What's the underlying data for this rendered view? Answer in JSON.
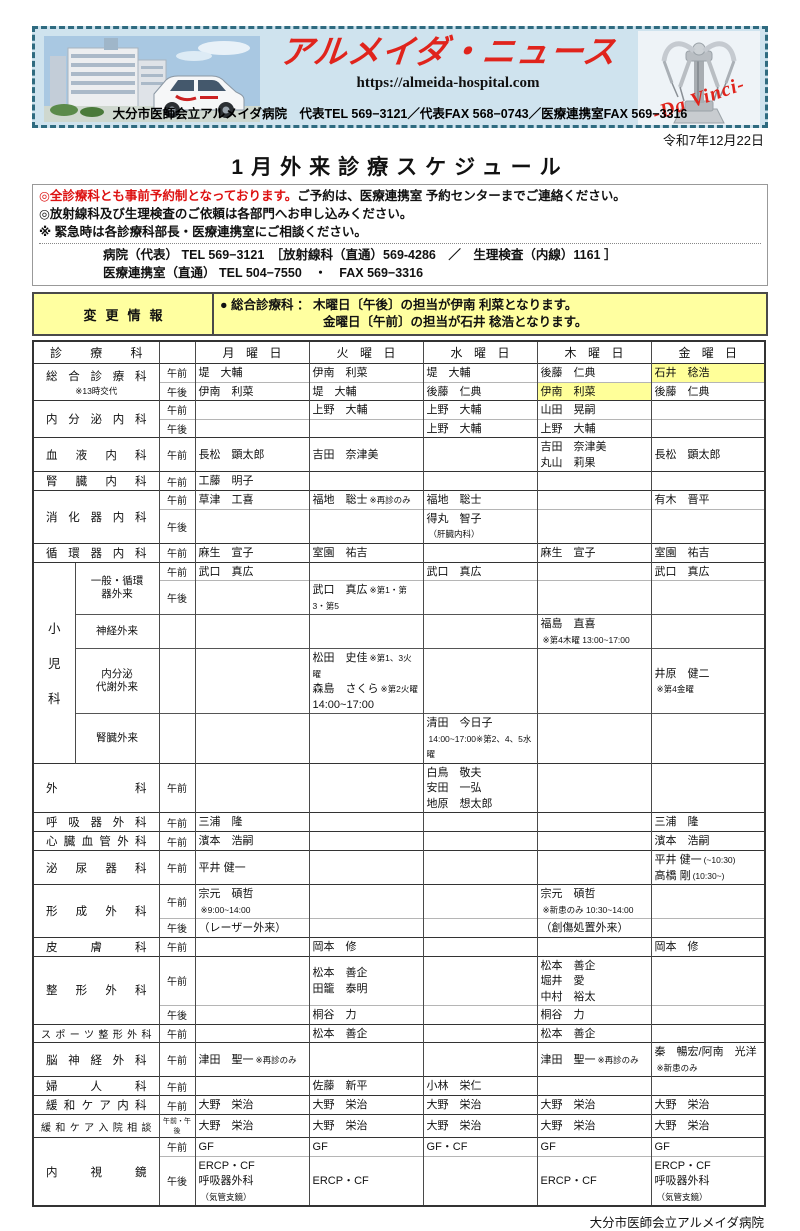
{
  "masthead": {
    "title": "アルメイダ・ニュース",
    "url": "https://almeida-hospital.com",
    "contact": "大分市医師会立アルメイダ病院　代表TEL 569−3121／代表FAX 568−0743／医療連携室FAX 569−3316",
    "da_vinci": "-Da Vinci-"
  },
  "issue_date": "令和7年12月22日",
  "page_title": "1月外来診療スケジュール",
  "notice": {
    "line1_red": "◎全診療科とも事前予約制となっております。",
    "line1_black": "ご予約は、医療連携室 予約センターまでご連絡ください。",
    "line2": "◎放射線科及び生理検査のご依頼は各部門へお申し込みください。",
    "line3": "※ 緊急時は各診療科部長・医療連携室にご相談ください。",
    "phone1": "病院（代表） TEL 569−3121　［放射線科（直通）569-4286　／　生理検査（内線）1161 ］",
    "phone2": "医療連携室（直通） TEL 504−7550　・　FAX 569−3316"
  },
  "change_info": {
    "label": "変更情報",
    "prefix": "● 総合診療科 ：",
    "line1": "木曜日〔午後〕の担当が伊南 利菜となります。",
    "line2": "金曜日〔午前〕の担当が石井 稔浩となります。"
  },
  "colors": {
    "accent_red": "#dd1111",
    "highlight_yellow": "#ffff99",
    "masthead_blue": "#cfe3ee",
    "masthead_border_teal": "#2f6b80",
    "change_box_yellow": "#ffffa0"
  },
  "schedule": {
    "header": {
      "dept": "診療科",
      "days": [
        "月曜日",
        "火曜日",
        "水曜日",
        "木曜日",
        "金曜日"
      ]
    },
    "rows": [
      {
        "dept": "総合診療科",
        "dept_note": "※13時交代",
        "sessions": [
          {
            "label": "午前",
            "cells": [
              {
                "t": "堤　大輔"
              },
              {
                "t": "伊南　利菜"
              },
              {
                "t": "堤　大輔"
              },
              {
                "t": "後藤　仁典"
              },
              {
                "t": "石井　稔浩",
                "hl": true
              }
            ]
          },
          {
            "label": "午後",
            "cells": [
              {
                "t": "伊南　利菜"
              },
              {
                "t": "堤　大輔"
              },
              {
                "t": "後藤　仁典"
              },
              {
                "t": "伊南　利菜",
                "hl": true
              },
              {
                "t": "後藤　仁典"
              }
            ]
          }
        ]
      },
      {
        "dept": "内分泌内科",
        "sessions": [
          {
            "label": "午前",
            "cells": [
              null,
              {
                "t": "上野　大輔"
              },
              {
                "t": "上野　大輔"
              },
              {
                "t": "山田　晃嗣"
              },
              null
            ]
          },
          {
            "label": "午後",
            "cells": [
              null,
              null,
              {
                "t": "上野　大輔"
              },
              {
                "t": "上野　大輔"
              },
              null
            ]
          }
        ]
      },
      {
        "dept": "血液内科",
        "sessions": [
          {
            "label": "午前",
            "cells": [
              {
                "t": "長松　顕太郎"
              },
              {
                "t": "吉田　奈津美"
              },
              null,
              {
                "lines": [
                  {
                    "t": "吉田　奈津美"
                  },
                  {
                    "t": "丸山　莉果"
                  }
                ]
              },
              {
                "t": "長松　顕太郎"
              }
            ]
          }
        ]
      },
      {
        "dept": "腎臓内科",
        "sessions": [
          {
            "label": "午前",
            "cells": [
              {
                "t": "工藤　明子"
              },
              null,
              null,
              null,
              null
            ]
          }
        ]
      },
      {
        "dept": "消化器内科",
        "sessions": [
          {
            "label": "午前",
            "cells": [
              {
                "t": "草津　工喜"
              },
              {
                "t": "福地　聡士",
                "n": "※再診のみ"
              },
              {
                "t": "福地　聡士"
              },
              null,
              {
                "t": "有木　晋平"
              }
            ]
          },
          {
            "label": "午後",
            "cells": [
              null,
              null,
              {
                "t": "得丸　智子",
                "n": "（肝臓内科）"
              },
              null,
              null
            ]
          }
        ]
      },
      {
        "dept": "循環器内科",
        "sessions": [
          {
            "label": "午前",
            "cells": [
              {
                "t": "麻生　宣子"
              },
              {
                "t": "室園　祐吉"
              },
              null,
              {
                "t": "麻生　宣子"
              },
              {
                "t": "室園　祐吉"
              }
            ]
          }
        ]
      },
      {
        "group": "小児科",
        "subrows": [
          {
            "sublabel": "一般・循環\n器外来",
            "sessions": [
              {
                "label": "午前",
                "cells": [
                  {
                    "t": "武口　真広"
                  },
                  null,
                  {
                    "t": "武口　真広"
                  },
                  null,
                  {
                    "t": "武口　真広"
                  }
                ]
              },
              {
                "label": "午後",
                "cells": [
                  null,
                  {
                    "t": "武口　真広",
                    "n": "※第1・第3・第5"
                  },
                  null,
                  null,
                  null
                ]
              }
            ]
          },
          {
            "sublabel": "神経外来",
            "sessions": [
              {
                "label": "",
                "cells": [
                  null,
                  null,
                  null,
                  {
                    "lines": [
                      {
                        "t": "福島　直喜"
                      },
                      {
                        "n": "※第4木曜 13:00~17:00"
                      }
                    ]
                  },
                  null
                ]
              }
            ]
          },
          {
            "sublabel": "内分泌\n代謝外来",
            "sessions": [
              {
                "label": "",
                "cells": [
                  null,
                  {
                    "lines": [
                      {
                        "t": "松田　史佳",
                        "n": "※第1、3火曜"
                      },
                      {
                        "t": "森島　さくら",
                        "n": "※第2火曜"
                      },
                      {
                        "t": "14:00~17:00"
                      }
                    ]
                  },
                  null,
                  null,
                  {
                    "lines": [
                      {
                        "t": "井原　健二"
                      },
                      {
                        "n": "※第4金曜"
                      }
                    ]
                  }
                ]
              }
            ]
          },
          {
            "sublabel": "腎臓外来",
            "sessions": [
              {
                "label": "",
                "cells": [
                  null,
                  null,
                  {
                    "lines": [
                      {
                        "t": "清田　今日子"
                      },
                      {
                        "n": "14:00~17:00※第2、4、5水曜"
                      }
                    ]
                  },
                  null,
                  null
                ]
              }
            ]
          }
        ]
      },
      {
        "dept": "外科",
        "sessions": [
          {
            "label": "午前",
            "cells": [
              null,
              null,
              {
                "lines": [
                  {
                    "t": "白鳥　敬夫"
                  },
                  {
                    "t": "安田　一弘"
                  },
                  {
                    "t": "地原　想太郎"
                  }
                ]
              },
              null,
              null
            ]
          }
        ]
      },
      {
        "dept": "呼吸器外科",
        "sessions": [
          {
            "label": "午前",
            "cells": [
              {
                "t": "三浦　隆"
              },
              null,
              null,
              null,
              {
                "t": "三浦　隆"
              }
            ]
          }
        ]
      },
      {
        "dept": "心臓血管外科",
        "sessions": [
          {
            "label": "午前",
            "cells": [
              {
                "t": "濱本　浩嗣"
              },
              null,
              null,
              null,
              {
                "t": "濱本　浩嗣"
              }
            ]
          }
        ]
      },
      {
        "dept": "泌尿器科",
        "sessions": [
          {
            "label": "午前",
            "cells": [
              {
                "t": "平井 健一"
              },
              null,
              null,
              null,
              {
                "lines": [
                  {
                    "t": "平井 健一",
                    "n": "(~10:30)"
                  },
                  {
                    "t": "高橋 剛",
                    "n": "(10:30~)"
                  }
                ]
              }
            ]
          }
        ]
      },
      {
        "dept": "形成外科",
        "sessions": [
          {
            "label": "午前",
            "cells": [
              {
                "lines": [
                  {
                    "t": "宗元　碩哲"
                  },
                  {
                    "n": "※9:00~14:00"
                  }
                ]
              },
              null,
              null,
              {
                "lines": [
                  {
                    "t": "宗元　碩哲"
                  },
                  {
                    "n": "※新患のみ 10:30~14:00"
                  }
                ]
              },
              null
            ]
          },
          {
            "label": "午後",
            "cells": [
              {
                "t": "（レーザー外来）"
              },
              null,
              null,
              {
                "t": "（創傷処置外来）"
              },
              null
            ]
          }
        ]
      },
      {
        "dept": "皮膚科",
        "sessions": [
          {
            "label": "午前",
            "cells": [
              null,
              {
                "t": "岡本　修"
              },
              null,
              null,
              {
                "t": "岡本　修"
              }
            ]
          }
        ]
      },
      {
        "dept": "整形外科",
        "sessions": [
          {
            "label": "午前",
            "cells": [
              null,
              {
                "lines": [
                  {
                    "t": "松本　善企"
                  },
                  {
                    "t": "田籠　泰明"
                  }
                ]
              },
              null,
              {
                "lines": [
                  {
                    "t": "松本　善企"
                  },
                  {
                    "t": "堀井　愛"
                  },
                  {
                    "t": "中村　裕太"
                  }
                ]
              },
              null
            ]
          },
          {
            "label": "午後",
            "cells": [
              null,
              {
                "t": "桐谷　力"
              },
              null,
              {
                "t": "桐谷　力"
              },
              null
            ]
          }
        ]
      },
      {
        "dept": "スポーツ整形外科",
        "sessions": [
          {
            "label": "午前",
            "cells": [
              null,
              {
                "t": "松本　善企"
              },
              null,
              {
                "t": "松本　善企"
              },
              null
            ]
          }
        ]
      },
      {
        "dept": "脳神経外科",
        "sessions": [
          {
            "label": "午前",
            "cells": [
              {
                "t": "津田　聖一",
                "n": "※再診のみ"
              },
              null,
              null,
              {
                "t": "津田　聖一",
                "n": "※再診のみ"
              },
              {
                "lines": [
                  {
                    "t": "秦　暢宏/阿南　光洋"
                  },
                  {
                    "n": "※新患のみ"
                  }
                ]
              }
            ]
          }
        ]
      },
      {
        "dept": "婦人科",
        "sessions": [
          {
            "label": "午前",
            "cells": [
              null,
              {
                "t": "佐藤　新平"
              },
              {
                "t": "小林　栄仁"
              },
              null,
              null
            ]
          }
        ]
      },
      {
        "dept": "緩和ケア内科",
        "sessions": [
          {
            "label": "午前",
            "cells": [
              {
                "t": "大野　栄治"
              },
              {
                "t": "大野　栄治"
              },
              {
                "t": "大野　栄治"
              },
              {
                "t": "大野　栄治"
              },
              {
                "t": "大野　栄治"
              }
            ]
          }
        ]
      },
      {
        "dept": "緩和ケア入院相談",
        "sessions": [
          {
            "label": "午前・午後",
            "cells": [
              {
                "t": "大野　栄治"
              },
              {
                "t": "大野　栄治"
              },
              {
                "t": "大野　栄治"
              },
              {
                "t": "大野　栄治"
              },
              {
                "t": "大野　栄治"
              }
            ]
          }
        ]
      },
      {
        "dept": "内視鏡",
        "sessions": [
          {
            "label": "午前",
            "cells": [
              {
                "t": "GF"
              },
              {
                "t": "GF"
              },
              {
                "t": "GF・CF"
              },
              {
                "t": "GF"
              },
              {
                "t": "GF"
              }
            ]
          },
          {
            "label": "午後",
            "cells": [
              {
                "lines": [
                  {
                    "t": "ERCP・CF"
                  },
                  {
                    "t": "呼吸器外科"
                  },
                  {
                    "n": "（気管支鏡）"
                  }
                ]
              },
              {
                "t": "ERCP・CF"
              },
              null,
              {
                "t": "ERCP・CF"
              },
              {
                "lines": [
                  {
                    "t": "ERCP・CF"
                  },
                  {
                    "t": "呼吸器外科"
                  },
                  {
                    "n": "（気管支鏡）"
                  }
                ]
              }
            ]
          }
        ]
      }
    ]
  },
  "footer": "大分市医師会立アルメイダ病院"
}
